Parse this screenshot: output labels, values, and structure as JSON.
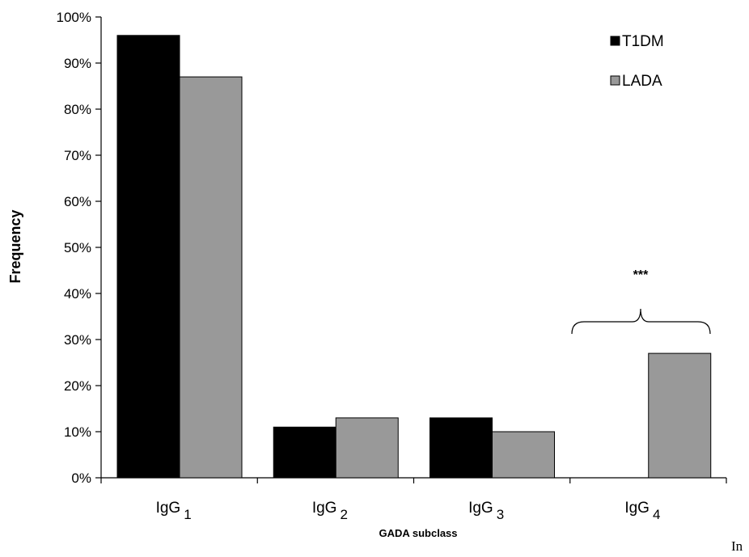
{
  "chart_data": {
    "type": "bar",
    "categories": [
      {
        "base": "IgG",
        "sub": "1"
      },
      {
        "base": "IgG",
        "sub": "2"
      },
      {
        "base": "IgG",
        "sub": "3"
      },
      {
        "base": "IgG",
        "sub": "4"
      }
    ],
    "series": [
      {
        "name": "T1DM",
        "color": "#000000",
        "values": [
          0.96,
          0.11,
          0.13,
          0.0
        ]
      },
      {
        "name": "LADA",
        "color": "#999999",
        "values": [
          0.87,
          0.13,
          0.1,
          0.27
        ]
      }
    ],
    "ylim": [
      0,
      1
    ],
    "yticks": [
      "0%",
      "10%",
      "20%",
      "30%",
      "40%",
      "50%",
      "60%",
      "70%",
      "80%",
      "90%",
      "100%"
    ],
    "xlabel": "GADA subclass",
    "ylabel": "Frequency",
    "legend": "top-right",
    "grid": false,
    "annotation": {
      "text": "***",
      "category_index": 3
    }
  },
  "trailing_text": "In"
}
